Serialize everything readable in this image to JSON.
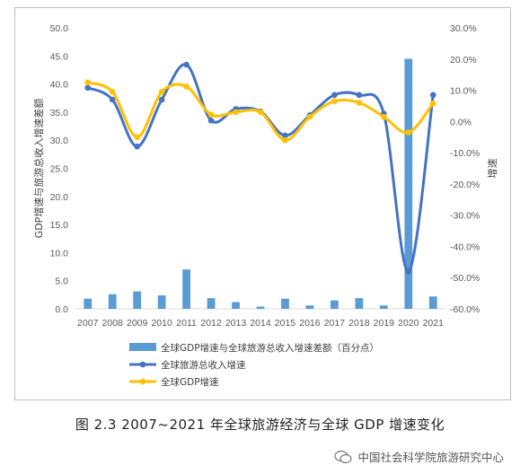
{
  "caption": "图 2.3   2007~2021 年全球旅游经济与全球 GDP 增速变化",
  "watermark": "中国社会科学院旅游研究中心",
  "colors": {
    "bar": "#5b9bd5",
    "tourism_line": "#4472c4",
    "gdp_line": "#ffc000",
    "grid": "#d9d9d9",
    "axis_text": "#595959"
  },
  "chart_data": {
    "type": "bar+line",
    "categories": [
      "2007",
      "2008",
      "2009",
      "2010",
      "2011",
      "2012",
      "2013",
      "2014",
      "2015",
      "2016",
      "2017",
      "2018",
      "2019",
      "2020",
      "2021"
    ],
    "left_axis": {
      "label": "GDP增速与旅游总收入增速差额",
      "range": [
        0,
        50
      ],
      "ticks": [
        "0.0",
        "5.0",
        "10.0",
        "15.0",
        "20.0",
        "25.0",
        "30.0",
        "35.0",
        "40.0",
        "45.0",
        "50.0"
      ]
    },
    "right_axis": {
      "label": "增速",
      "range": [
        -60,
        30
      ],
      "ticks": [
        "-60.0%",
        "-50.0%",
        "-40.0%",
        "-30.0%",
        "-20.0%",
        "-10.0%",
        "0.0%",
        "10.0%",
        "20.0%",
        "30.0%"
      ]
    },
    "series": [
      {
        "name": "全球GDP增速与全球旅游总收入增速差额（百分点）",
        "type": "bar",
        "axis": "left",
        "values": [
          1.8,
          2.6,
          3.1,
          2.4,
          7.0,
          1.9,
          1.2,
          0.4,
          1.8,
          0.6,
          1.5,
          1.9,
          0.6,
          44.5,
          2.2
        ]
      },
      {
        "name": "全球旅游总收入增速",
        "type": "line",
        "axis": "right",
        "values": [
          10.8,
          7.0,
          -8.0,
          7.0,
          18.2,
          0.3,
          4.0,
          3.2,
          -4.5,
          2.0,
          8.5,
          8.5,
          2.5,
          -48.0,
          8.5
        ]
      },
      {
        "name": "全球GDP增速",
        "type": "line",
        "axis": "right",
        "values": [
          12.5,
          9.5,
          -5.0,
          9.5,
          11.2,
          2.2,
          3.0,
          3.0,
          -6.0,
          1.5,
          6.5,
          6.0,
          1.5,
          -3.5,
          5.8
        ]
      }
    ],
    "grid": false,
    "legend_position": "bottom"
  }
}
